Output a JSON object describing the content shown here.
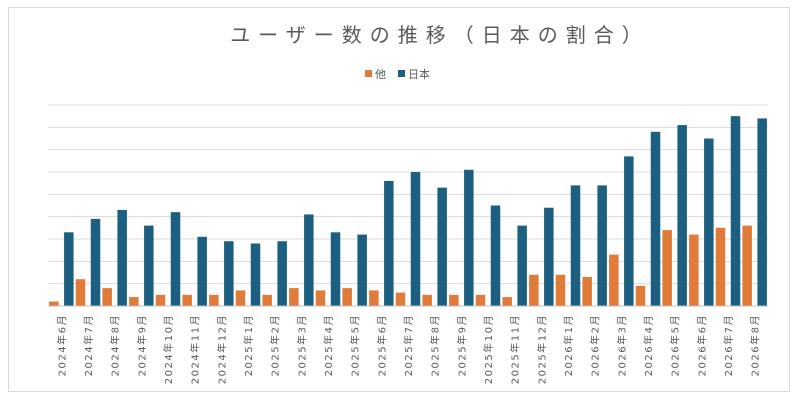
{
  "chart_data": {
    "type": "bar",
    "title": "ユーザー数の推移（日本の割合）",
    "xlabel": "",
    "ylabel": "",
    "legend_position": "top",
    "grid": true,
    "ylim": [
      0,
      9
    ],
    "categories": [
      "2024年6月",
      "2024年7月",
      "2024年8月",
      "2024年9月",
      "2024年10月",
      "2024年11月",
      "2024年12月",
      "2025年1月",
      "2025年2月",
      "2025年3月",
      "2025年4月",
      "2025年5月",
      "2025年6月",
      "2025年7月",
      "2025年8月",
      "2025年9月",
      "2025年10月",
      "2025年11月",
      "2025年12月",
      "2026年1月",
      "2026年2月",
      "2026年3月",
      "2026年4月",
      "2026年5月",
      "2026年6月",
      "2026年7月",
      "2026年8月"
    ],
    "series": [
      {
        "name": "他",
        "color": "#e07b39",
        "values": [
          0.2,
          1.2,
          0.8,
          0.4,
          0.5,
          0.5,
          0.5,
          0.7,
          0.5,
          0.8,
          0.7,
          0.8,
          0.7,
          0.6,
          0.5,
          0.5,
          0.5,
          0.4,
          1.4,
          1.4,
          1.3,
          2.3,
          0.9,
          3.4,
          3.2,
          3.5,
          3.6
        ]
      },
      {
        "name": "日本",
        "color": "#1c5f80",
        "values": [
          3.3,
          3.9,
          4.3,
          3.6,
          4.2,
          3.1,
          2.9,
          2.8,
          2.9,
          4.1,
          3.3,
          3.2,
          5.6,
          6.0,
          5.3,
          6.1,
          4.5,
          3.6,
          4.4,
          5.4,
          5.4,
          6.7,
          7.8,
          8.1,
          7.5,
          8.5,
          8.4
        ]
      }
    ]
  }
}
